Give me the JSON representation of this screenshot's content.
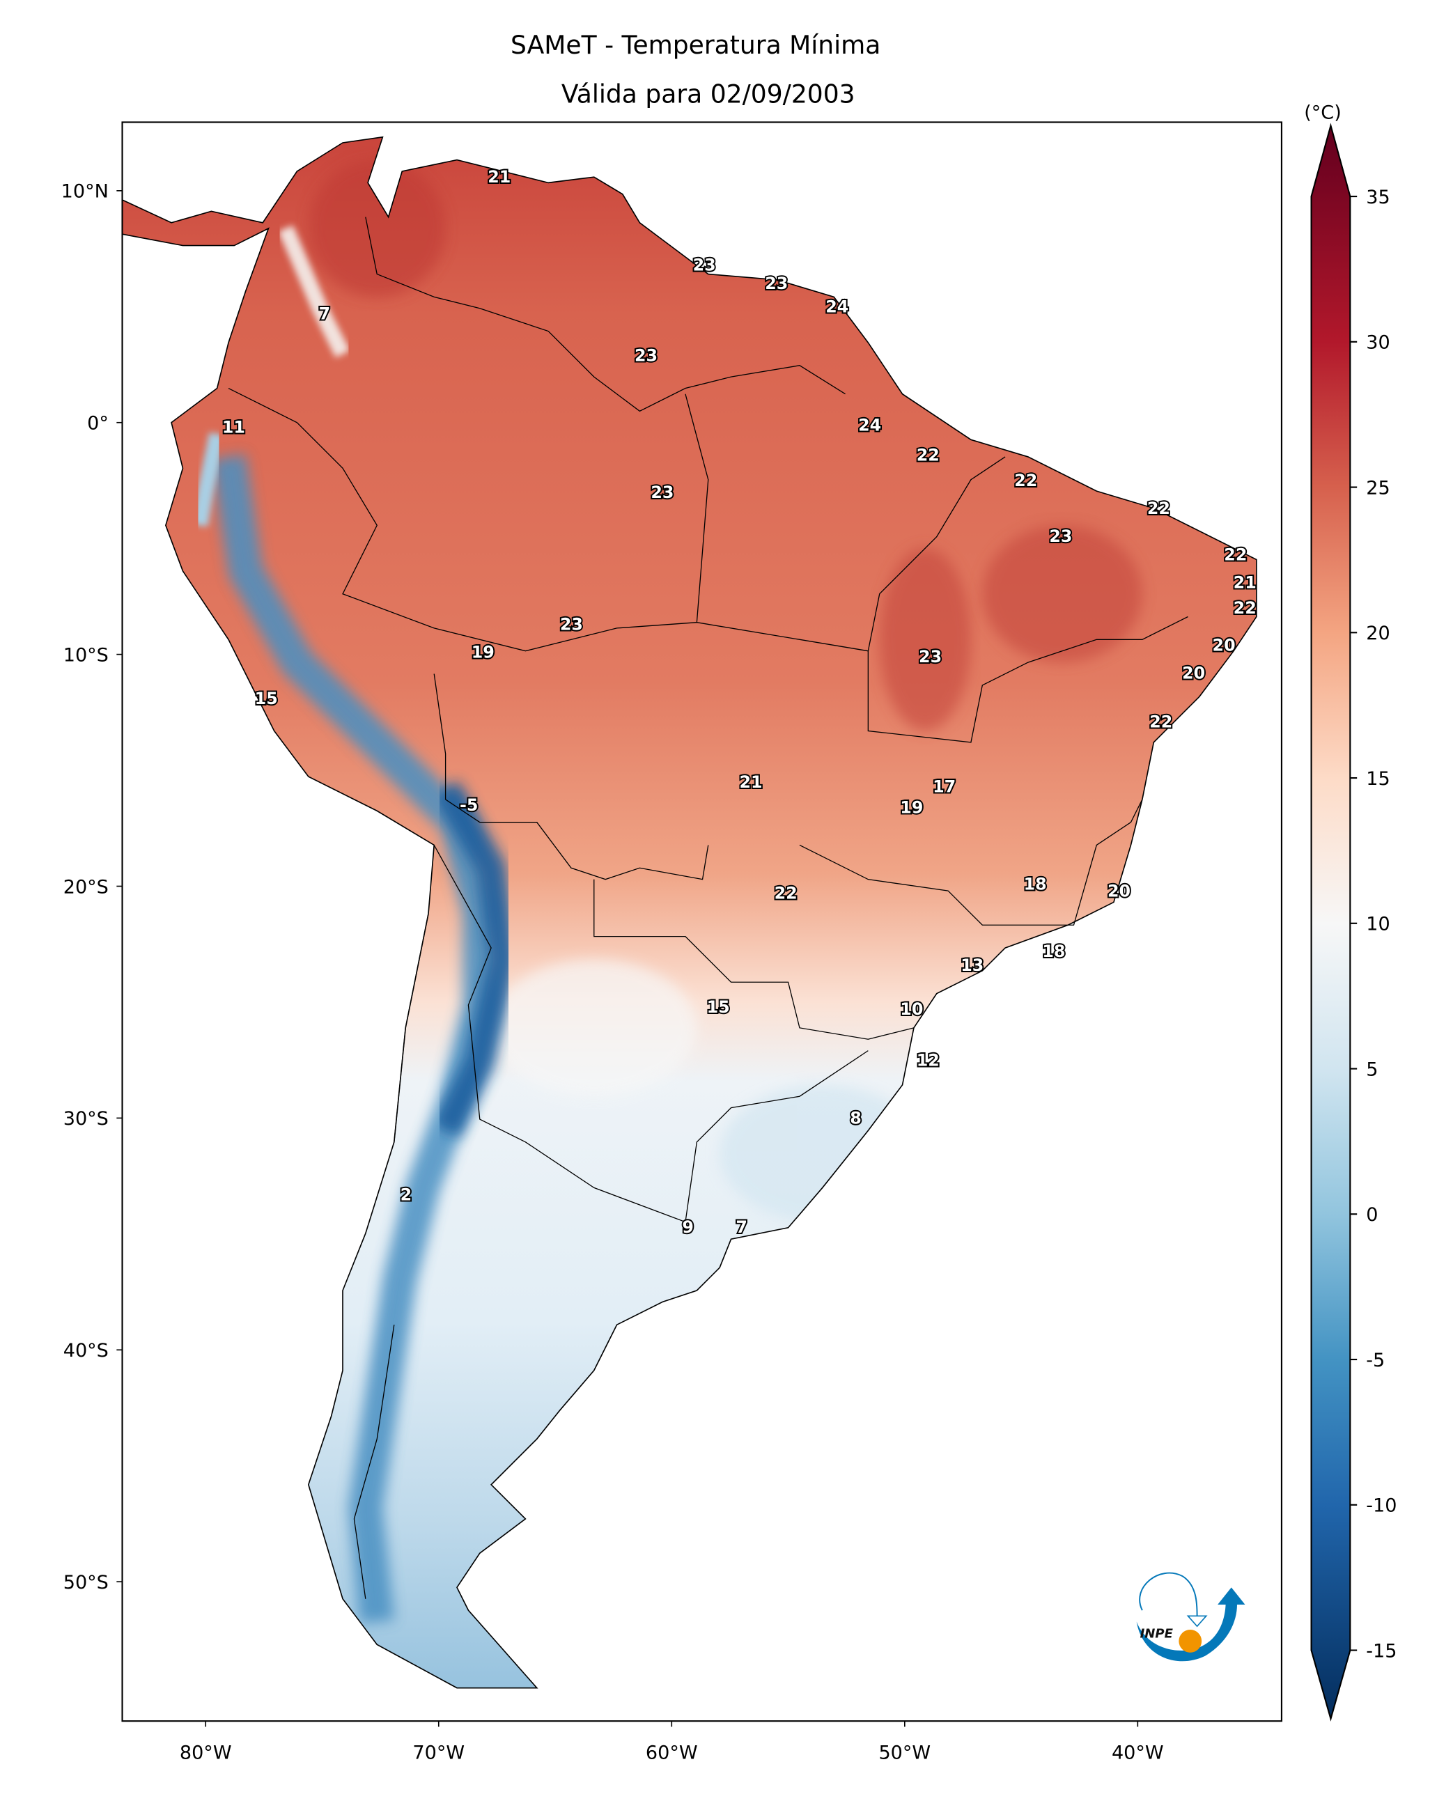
{
  "title": {
    "line1": "SAMeT - Temperatura Mínima",
    "line2": "Válida para 02/09/2003"
  },
  "colorbar": {
    "unit": "(°C)",
    "min": -15,
    "max": 35,
    "ticks": [
      "35",
      "30",
      "25",
      "20",
      "15",
      "10",
      "5",
      "0",
      "-5",
      "-10",
      "-15"
    ],
    "tick_values": [
      35,
      30,
      25,
      20,
      15,
      10,
      5,
      0,
      -5,
      -10,
      -15
    ],
    "colors": [
      {
        "v": -17,
        "c": "#053061"
      },
      {
        "v": -10,
        "c": "#2166ac"
      },
      {
        "v": -5,
        "c": "#4393c3"
      },
      {
        "v": 0,
        "c": "#92c5de"
      },
      {
        "v": 5,
        "c": "#d1e5f0"
      },
      {
        "v": 10,
        "c": "#f7f7f7"
      },
      {
        "v": 15,
        "c": "#fddbc7"
      },
      {
        "v": 20,
        "c": "#f4a582"
      },
      {
        "v": 25,
        "c": "#d6604d"
      },
      {
        "v": 30,
        "c": "#b2182b"
      },
      {
        "v": 37,
        "c": "#67001f"
      }
    ]
  },
  "axes": {
    "lon_ticks": [
      {
        "v": -80,
        "label": "80°W"
      },
      {
        "v": -70,
        "label": "70°W"
      },
      {
        "v": -60,
        "label": "60°W"
      },
      {
        "v": -50,
        "label": "50°W"
      },
      {
        "v": -40,
        "label": "40°W"
      }
    ],
    "lat_ticks": [
      {
        "v": 10,
        "label": "10°N"
      },
      {
        "v": 0,
        "label": "0°"
      },
      {
        "v": -10,
        "label": "10°S"
      },
      {
        "v": -20,
        "label": "20°S"
      },
      {
        "v": -30,
        "label": "30°S"
      },
      {
        "v": -40,
        "label": "40°S"
      },
      {
        "v": -50,
        "label": "50°S"
      }
    ]
  },
  "stations": [
    {
      "value": "21",
      "lon": -67.4,
      "lat": 10.6
    },
    {
      "value": "23",
      "lon": -58.6,
      "lat": 6.8
    },
    {
      "value": "23",
      "lon": -55.5,
      "lat": 6.0
    },
    {
      "value": "24",
      "lon": -52.9,
      "lat": 5.0
    },
    {
      "value": "7",
      "lon": -74.9,
      "lat": 4.7
    },
    {
      "value": "23",
      "lon": -61.1,
      "lat": 2.9
    },
    {
      "value": "11",
      "lon": -78.8,
      "lat": -0.2
    },
    {
      "value": "24",
      "lon": -51.5,
      "lat": -0.1
    },
    {
      "value": "22",
      "lon": -49.0,
      "lat": -1.4
    },
    {
      "value": "22",
      "lon": -44.8,
      "lat": -2.5
    },
    {
      "value": "23",
      "lon": -60.4,
      "lat": -3.0
    },
    {
      "value": "22",
      "lon": -39.1,
      "lat": -3.7
    },
    {
      "value": "23",
      "lon": -43.3,
      "lat": -4.9
    },
    {
      "value": "22",
      "lon": -35.8,
      "lat": -5.7
    },
    {
      "value": "21",
      "lon": -35.4,
      "lat": -6.9
    },
    {
      "value": "22",
      "lon": -35.4,
      "lat": -8.0
    },
    {
      "value": "23",
      "lon": -64.3,
      "lat": -8.7
    },
    {
      "value": "20",
      "lon": -36.3,
      "lat": -9.6
    },
    {
      "value": "19",
      "lon": -68.1,
      "lat": -9.9
    },
    {
      "value": "23",
      "lon": -48.9,
      "lat": -10.1
    },
    {
      "value": "20",
      "lon": -37.6,
      "lat": -10.8
    },
    {
      "value": "15",
      "lon": -77.4,
      "lat": -11.9
    },
    {
      "value": "22",
      "lon": -39.0,
      "lat": -12.9
    },
    {
      "value": "21",
      "lon": -56.6,
      "lat": -15.5
    },
    {
      "value": "17",
      "lon": -48.3,
      "lat": -15.7
    },
    {
      "value": "-5",
      "lon": -68.7,
      "lat": -16.5
    },
    {
      "value": "19",
      "lon": -49.7,
      "lat": -16.6
    },
    {
      "value": "18",
      "lon": -44.4,
      "lat": -19.9
    },
    {
      "value": "20",
      "lon": -40.8,
      "lat": -20.2
    },
    {
      "value": "22",
      "lon": -55.1,
      "lat": -20.3
    },
    {
      "value": "18",
      "lon": -43.6,
      "lat": -22.8
    },
    {
      "value": "13",
      "lon": -47.1,
      "lat": -23.4
    },
    {
      "value": "15",
      "lon": -58.0,
      "lat": -25.2
    },
    {
      "value": "10",
      "lon": -49.7,
      "lat": -25.3
    },
    {
      "value": "12",
      "lon": -49.0,
      "lat": -27.5
    },
    {
      "value": "8",
      "lon": -52.1,
      "lat": -30.0
    },
    {
      "value": "2",
      "lon": -71.4,
      "lat": -33.3
    },
    {
      "value": "9",
      "lon": -59.3,
      "lat": -34.7
    },
    {
      "value": "7",
      "lon": -57.0,
      "lat": -34.7
    }
  ],
  "logo": {
    "text": "INPE",
    "blue": "#0478b9",
    "orange": "#f29400"
  }
}
